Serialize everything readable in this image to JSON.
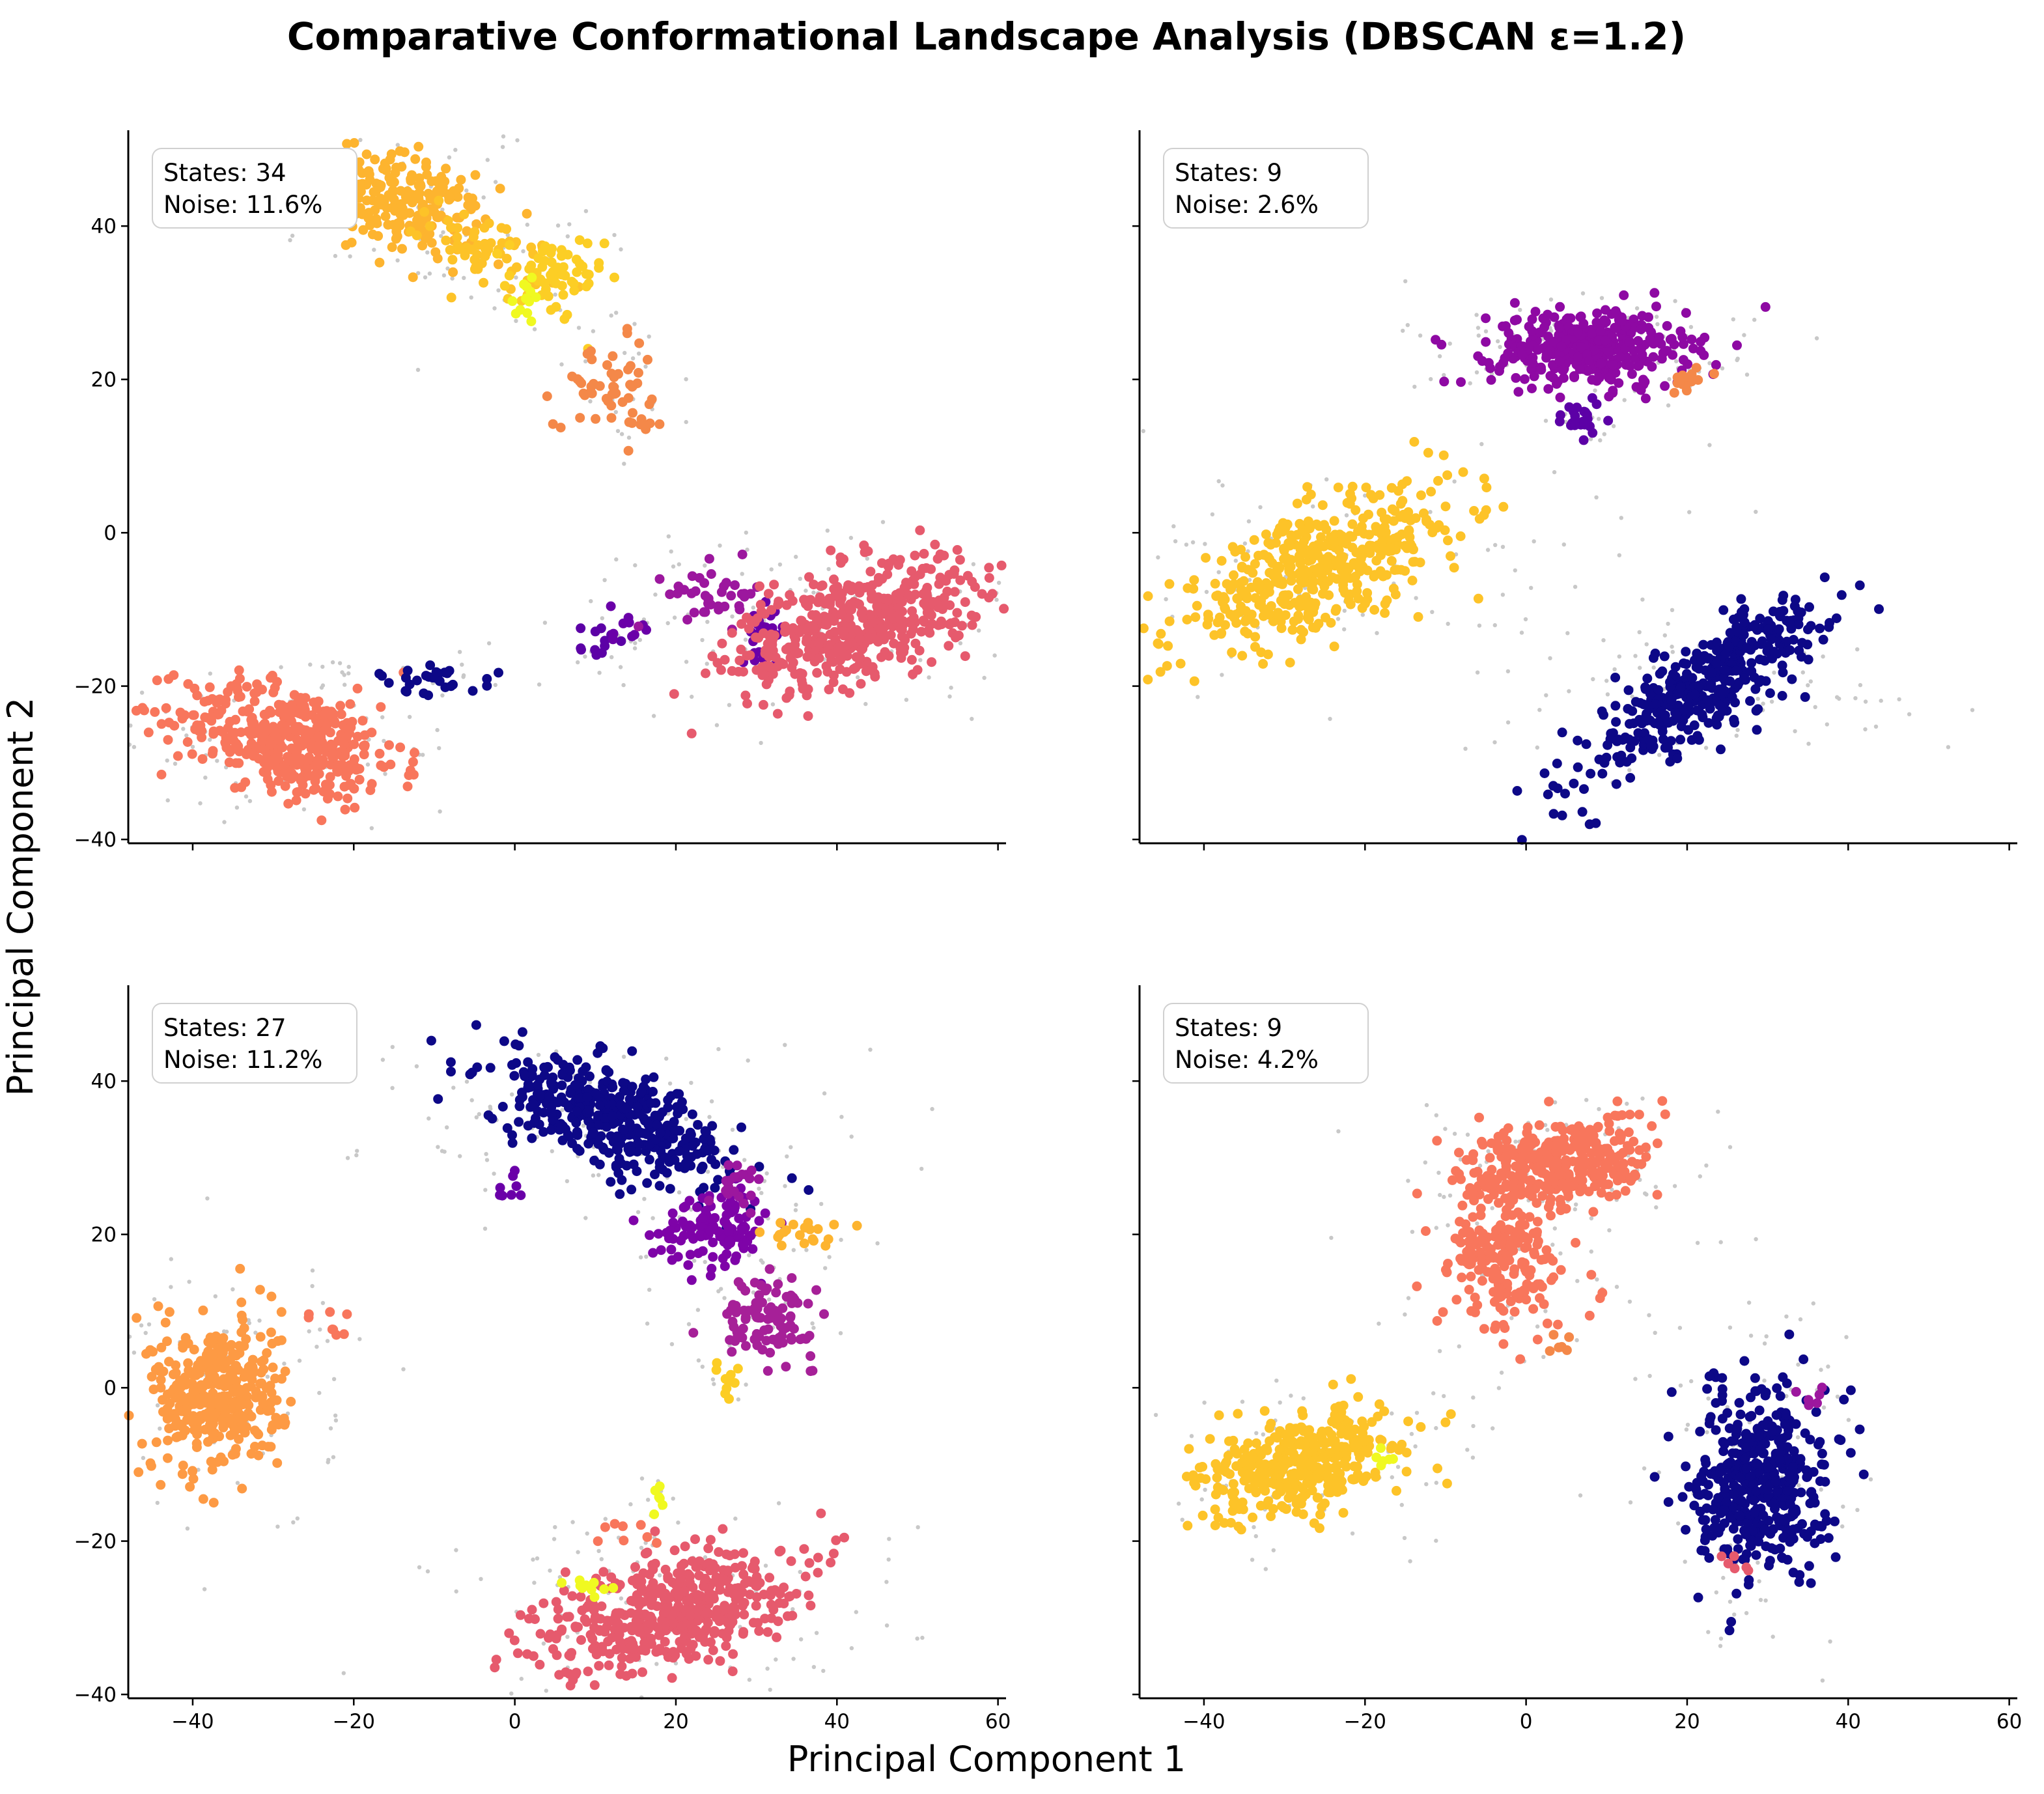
{
  "chart_data": {
    "type": "scatter",
    "title": "Comparative Conformational Landscape Analysis (DBSCAN ε=1.2)",
    "xlabel": "Principal Component 1",
    "ylabel": "Principal Component 2",
    "xlim": [
      -48,
      61
    ],
    "ylim": [
      -40.5,
      52.5
    ],
    "xticks": [
      -40,
      -20,
      0,
      20,
      40,
      60
    ],
    "yticks": [
      -40,
      -20,
      0,
      20,
      40
    ],
    "noise_color": "#c8c8c8",
    "panels": [
      {
        "id": "top-left",
        "annotation": {
          "states_label": "States: 34",
          "noise_label": "Noise: 11.6%"
        },
        "clusters": [
          {
            "cx": -14,
            "cy": 43,
            "sx": 5,
            "sy": 3,
            "n": 220,
            "color": "#fdb42f",
            "rot": -0.35
          },
          {
            "cx": -3,
            "cy": 37,
            "sx": 4,
            "sy": 2,
            "n": 60,
            "color": "#fdc328",
            "rot": -0.4
          },
          {
            "cx": 5,
            "cy": 33,
            "sx": 3,
            "sy": 3,
            "n": 60,
            "color": "#fcce25",
            "rot": 0
          },
          {
            "cx": 1,
            "cy": 30,
            "sx": 1.5,
            "sy": 1.5,
            "n": 12,
            "color": "#f0f921",
            "rot": 0
          },
          {
            "cx": 11,
            "cy": 19,
            "sx": 3,
            "sy": 2.5,
            "n": 40,
            "color": "#f48849",
            "rot": 0
          },
          {
            "cx": 15,
            "cy": 23,
            "sx": 1,
            "sy": 1.5,
            "n": 8,
            "color": "#f48849",
            "rot": 0
          },
          {
            "cx": 16,
            "cy": 14,
            "sx": 1.2,
            "sy": 1.5,
            "n": 10,
            "color": "#f48849",
            "rot": 0
          },
          {
            "cx": -28,
            "cy": -27,
            "sx": 7,
            "sy": 3.5,
            "n": 420,
            "color": "#f8765c",
            "rot": -0.25
          },
          {
            "cx": -10,
            "cy": -19,
            "sx": 4,
            "sy": 1,
            "n": 30,
            "color": "#0d0887",
            "rot": -0.1
          },
          {
            "cx": 10,
            "cy": -15,
            "sx": 1,
            "sy": 2,
            "n": 12,
            "color": "#5c01a6",
            "rot": 0
          },
          {
            "cx": 15,
            "cy": -12,
            "sx": 1.5,
            "sy": 1.5,
            "n": 10,
            "color": "#6a00a8",
            "rot": 0
          },
          {
            "cx": 25,
            "cy": -8,
            "sx": 3,
            "sy": 2,
            "n": 40,
            "color": "#9c179e",
            "rot": 0
          },
          {
            "cx": 31,
            "cy": -12,
            "sx": 1.5,
            "sy": 2,
            "n": 20,
            "color": "#6a00a8",
            "rot": 0
          },
          {
            "cx": 42,
            "cy": -12,
            "sx": 8,
            "sy": 3.5,
            "n": 500,
            "color": "#e65a6d",
            "rot": 0.35
          }
        ]
      },
      {
        "id": "top-right",
        "annotation": {
          "states_label": "States: 9",
          "noise_label": "Noise: 2.6%"
        },
        "clusters": [
          {
            "cx": 8,
            "cy": 24,
            "sx": 6,
            "sy": 2.5,
            "n": 380,
            "color": "#8e09a3",
            "rot": 0
          },
          {
            "cx": 7,
            "cy": 15,
            "sx": 2,
            "sy": 1.2,
            "n": 25,
            "color": "#5c01a6",
            "rot": 0
          },
          {
            "cx": 20,
            "cy": 20,
            "sx": 1.5,
            "sy": 1,
            "n": 15,
            "color": "#f48849",
            "rot": 0
          },
          {
            "cx": -26,
            "cy": -5,
            "sx": 10,
            "sy": 3.5,
            "n": 480,
            "color": "#fdc328",
            "rot": 0.45
          },
          {
            "cx": 22,
            "cy": -20,
            "sx": 9,
            "sy": 2.5,
            "n": 420,
            "color": "#0d0887",
            "rot": 0.65
          }
        ]
      },
      {
        "id": "bottom-left",
        "annotation": {
          "states_label": "States: 27",
          "noise_label": "Noise: 11.2%"
        },
        "clusters": [
          {
            "cx": 12,
            "cy": 35,
            "sx": 8,
            "sy": 3,
            "n": 420,
            "color": "#0d0887",
            "rot": -0.4
          },
          {
            "cx": 25,
            "cy": 21,
            "sx": 3.5,
            "sy": 2.5,
            "n": 120,
            "color": "#7e03a8",
            "rot": 0
          },
          {
            "cx": 28,
            "cy": 27,
            "sx": 2,
            "sy": 1.5,
            "n": 20,
            "color": "#9c179e",
            "rot": 0
          },
          {
            "cx": 31,
            "cy": 9,
            "sx": 3,
            "sy": 2.5,
            "n": 100,
            "color": "#a62098",
            "rot": 0
          },
          {
            "cx": 37,
            "cy": 20,
            "sx": 2.5,
            "sy": 1,
            "n": 20,
            "color": "#fdb42f",
            "rot": 0
          },
          {
            "cx": 26,
            "cy": 1,
            "sx": 0.8,
            "sy": 1.5,
            "n": 10,
            "color": "#fccd25",
            "rot": 0
          },
          {
            "cx": -1,
            "cy": 26,
            "sx": 1,
            "sy": 1,
            "n": 8,
            "color": "#6a00a8",
            "rot": 0
          },
          {
            "cx": -37,
            "cy": -1,
            "sx": 4,
            "sy": 5,
            "n": 380,
            "color": "#fd9a44",
            "rot": 0
          },
          {
            "cx": -22,
            "cy": 8,
            "sx": 1.5,
            "sy": 1.5,
            "n": 8,
            "color": "#f8765c",
            "rot": 0
          },
          {
            "cx": 19,
            "cy": -29,
            "sx": 8,
            "sy": 3.5,
            "n": 480,
            "color": "#e65a6d",
            "rot": 0.3
          },
          {
            "cx": 13,
            "cy": -19,
            "sx": 2,
            "sy": 1,
            "n": 8,
            "color": "#f8765c",
            "rot": 0
          },
          {
            "cx": 9,
            "cy": -26,
            "sx": 1.5,
            "sy": 0.8,
            "n": 10,
            "color": "#f0f921",
            "rot": 0
          },
          {
            "cx": 18,
            "cy": -14,
            "sx": 1,
            "sy": 0.8,
            "n": 6,
            "color": "#f0f921",
            "rot": 0
          }
        ]
      },
      {
        "id": "bottom-right",
        "annotation": {
          "states_label": "States: 9",
          "noise_label": "Noise: 4.2%"
        },
        "clusters": [
          {
            "cx": 4,
            "cy": 29,
            "sx": 6,
            "sy": 3,
            "n": 350,
            "color": "#f8765c",
            "rot": 0.15
          },
          {
            "cx": -3,
            "cy": 16,
            "sx": 4,
            "sy": 4,
            "n": 200,
            "color": "#f8765c",
            "rot": -0.5
          },
          {
            "cx": 4,
            "cy": 6,
            "sx": 1,
            "sy": 0.8,
            "n": 6,
            "color": "#f48849",
            "rot": 0
          },
          {
            "cx": -28,
            "cy": -10,
            "sx": 6,
            "sy": 3,
            "n": 380,
            "color": "#fdc328",
            "rot": 0.35
          },
          {
            "cx": -17,
            "cy": -9,
            "sx": 1,
            "sy": 0.8,
            "n": 6,
            "color": "#f0f921",
            "rot": 0
          },
          {
            "cx": 29,
            "cy": -12,
            "sx": 4,
            "sy": 6,
            "n": 450,
            "color": "#0d0887",
            "rot": 0
          },
          {
            "cx": 36,
            "cy": -1,
            "sx": 1,
            "sy": 0.8,
            "n": 6,
            "color": "#9c179e",
            "rot": 0
          },
          {
            "cx": 26,
            "cy": -23,
            "sx": 1,
            "sy": 1,
            "n": 6,
            "color": "#e65a6d",
            "rot": 0
          }
        ]
      }
    ]
  }
}
